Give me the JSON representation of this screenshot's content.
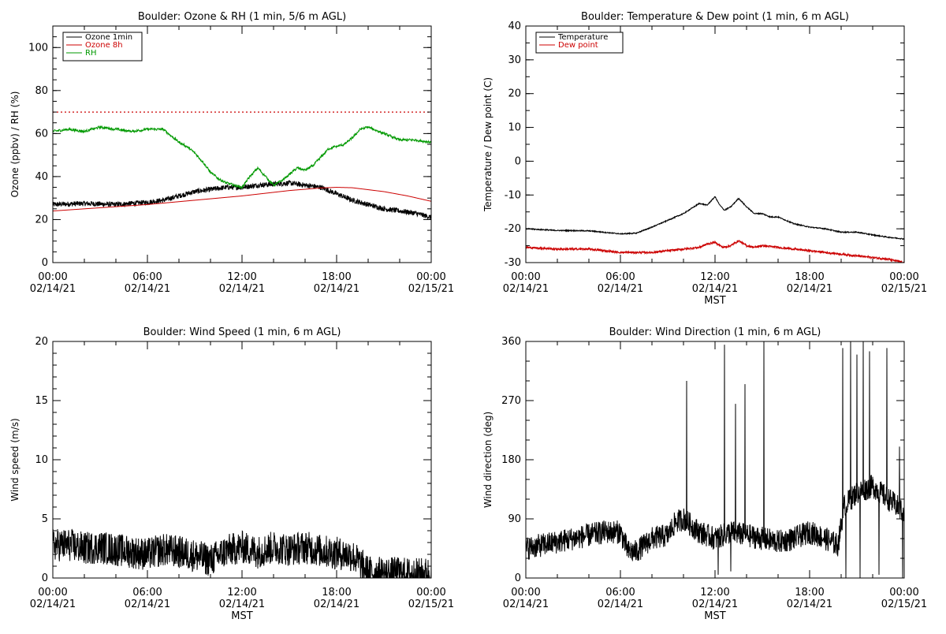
{
  "chart_data": [
    {
      "type": "line",
      "title": "Boulder: Ozone & RH (1 min, 5/6 m AGL)",
      "ylabel": "Ozone (ppbv) / RH (%)",
      "xlabel": "",
      "ylim": [
        0,
        110
      ],
      "yticks": [
        "0",
        "20",
        "40",
        "60",
        "80",
        "100"
      ],
      "ytick_values": [
        0,
        20,
        40,
        60,
        80,
        100
      ],
      "xlim": [
        0,
        24
      ],
      "xticks": [
        {
          "time": "00:00",
          "date": "02/14/21"
        },
        {
          "time": "06:00",
          "date": "02/14/21"
        },
        {
          "time": "12:00",
          "date": "02/14/21"
        },
        {
          "time": "18:00",
          "date": "02/14/21"
        },
        {
          "time": "00:00",
          "date": "02/15/21"
        }
      ],
      "legend": [
        "Ozone 1min",
        "Ozone 8h",
        "RH"
      ],
      "legend_position": "top-left",
      "reference_line": {
        "y": 70,
        "color": "#cc0000",
        "style": "dotted"
      },
      "series": [
        {
          "name": "Ozone 1min",
          "color": "#000000",
          "noise": 1.2,
          "x": [
            0,
            2,
            4,
            6,
            7,
            8,
            9,
            10,
            11,
            12,
            13,
            14,
            15,
            16,
            17,
            18,
            19,
            20,
            21,
            22,
            23,
            24
          ],
          "y": [
            27,
            27.5,
            27,
            28,
            29,
            31,
            33,
            34,
            35,
            35,
            36,
            36.5,
            37,
            36,
            35,
            32,
            29,
            27,
            25,
            24,
            23,
            21
          ]
        },
        {
          "name": "Ozone 8h",
          "color": "#cc0000",
          "noise": 0,
          "x": [
            0,
            3,
            6,
            9,
            12,
            15,
            17,
            18,
            19,
            21,
            22.5,
            24
          ],
          "y": [
            24,
            25.5,
            27,
            29,
            31,
            33.5,
            34.7,
            35,
            34.8,
            33,
            31,
            28.5
          ]
        },
        {
          "name": "RH",
          "color": "#009900",
          "noise": 0.8,
          "x": [
            0,
            1,
            2,
            3,
            4,
            5,
            6,
            7,
            7.5,
            8,
            8.5,
            9,
            9.5,
            10,
            10.5,
            11,
            11.5,
            12,
            12.5,
            13,
            13.5,
            14,
            14.5,
            15,
            15.5,
            16,
            16.5,
            17,
            17.5,
            18,
            18.5,
            19,
            19.5,
            20,
            21,
            22,
            23,
            24
          ],
          "y": [
            61,
            62,
            61,
            63,
            62,
            61,
            62,
            62,
            59,
            56,
            54,
            51,
            47,
            42,
            39,
            37,
            36,
            35,
            40,
            44,
            40,
            36,
            38,
            41,
            44,
            43,
            45,
            49,
            53,
            54,
            55,
            58,
            62,
            63,
            60,
            57,
            57,
            56
          ]
        }
      ]
    },
    {
      "type": "line",
      "title": "Boulder: Temperature & Dew point (1 min, 6 m AGL)",
      "ylabel": "Temperature / Dew point (C)",
      "xlabel": "MST",
      "ylim": [
        -30,
        40
      ],
      "yticks": [
        "-30",
        "-20",
        "-10",
        "0",
        "10",
        "20",
        "30",
        "40"
      ],
      "ytick_values": [
        -30,
        -20,
        -10,
        0,
        10,
        20,
        30,
        40
      ],
      "xlim": [
        0,
        24
      ],
      "xticks": [
        {
          "time": "00:00",
          "date": "02/14/21"
        },
        {
          "time": "06:00",
          "date": "02/14/21"
        },
        {
          "time": "12:00",
          "date": "02/14/21"
        },
        {
          "time": "18:00",
          "date": "02/14/21"
        },
        {
          "time": "00:00",
          "date": "02/15/21"
        }
      ],
      "legend": [
        "Temperature",
        "Dew point"
      ],
      "legend_position": "top-left",
      "series": [
        {
          "name": "Temperature",
          "color": "#000000",
          "noise": 0.15,
          "x": [
            0,
            2,
            4,
            6,
            7,
            8,
            9,
            10,
            10.5,
            11,
            11.5,
            12,
            12.3,
            12.6,
            13,
            13.5,
            14,
            14.5,
            15,
            15.5,
            16,
            17,
            18,
            19,
            20,
            21,
            22,
            23,
            24
          ],
          "y": [
            -20,
            -20.5,
            -20.6,
            -21.5,
            -21.3,
            -19.5,
            -17.5,
            -15.5,
            -14,
            -12.5,
            -13,
            -10.5,
            -13,
            -14.5,
            -13.5,
            -11,
            -13.5,
            -15.5,
            -15.5,
            -16.5,
            -16.5,
            -18.5,
            -19.5,
            -20,
            -21,
            -21,
            -21.8,
            -22.5,
            -23
          ]
        },
        {
          "name": "Dew point",
          "color": "#cc0000",
          "noise": 0.3,
          "x": [
            0,
            2,
            4,
            6,
            7,
            8,
            9,
            10,
            11,
            11.5,
            12,
            12.5,
            13,
            13.5,
            14,
            14.5,
            15,
            16,
            17,
            18,
            19,
            20,
            21,
            22,
            23,
            24
          ],
          "y": [
            -25.5,
            -26,
            -26,
            -27,
            -27,
            -27,
            -26.5,
            -26,
            -25.5,
            -24.5,
            -24,
            -25.5,
            -25,
            -23.5,
            -25,
            -25.5,
            -25,
            -25.5,
            -26,
            -26.5,
            -27,
            -27.5,
            -28,
            -28.5,
            -29,
            -30
          ]
        }
      ]
    },
    {
      "type": "line",
      "title": "Boulder: Wind Speed (1 min, 6 m AGL)",
      "ylabel": "Wind speed (m/s)",
      "xlabel": "MST",
      "ylim": [
        0,
        20
      ],
      "yticks": [
        "0",
        "5",
        "10",
        "15",
        "20"
      ],
      "ytick_values": [
        0,
        5,
        10,
        15,
        20
      ],
      "xlim": [
        0,
        24
      ],
      "xticks": [
        {
          "time": "00:00",
          "date": "02/14/21"
        },
        {
          "time": "06:00",
          "date": "02/14/21"
        },
        {
          "time": "12:00",
          "date": "02/14/21"
        },
        {
          "time": "18:00",
          "date": "02/14/21"
        },
        {
          "time": "00:00",
          "date": "02/15/21"
        }
      ],
      "series": [
        {
          "name": "",
          "color": "#000000",
          "noise": 1.4,
          "x": [
            0,
            1,
            2,
            3,
            4,
            5,
            6,
            7,
            8,
            9,
            10,
            11,
            12,
            13,
            14,
            15,
            16,
            17,
            18,
            19,
            19.5,
            20,
            21,
            22,
            23,
            24
          ],
          "y": [
            2.8,
            2.8,
            2.5,
            2.6,
            2.4,
            2.2,
            2.0,
            2.4,
            2.2,
            1.9,
            1.5,
            2.3,
            2.6,
            2.2,
            2.6,
            2.4,
            2.6,
            2.3,
            2.1,
            1.9,
            1.2,
            0.5,
            0.4,
            0.4,
            0.3,
            0.4
          ]
        }
      ]
    },
    {
      "type": "line",
      "title": "Boulder: Wind Direction (1 min, 6 m AGL)",
      "ylabel": "Wind direction (deg)",
      "xlabel": "MST",
      "ylim": [
        0,
        360
      ],
      "yticks": [
        "0",
        "90",
        "180",
        "270",
        "360"
      ],
      "ytick_values": [
        0,
        90,
        180,
        270,
        360
      ],
      "xlim": [
        0,
        24
      ],
      "xticks": [
        {
          "time": "00:00",
          "date": "02/14/21"
        },
        {
          "time": "06:00",
          "date": "02/14/21"
        },
        {
          "time": "12:00",
          "date": "02/14/21"
        },
        {
          "time": "18:00",
          "date": "02/14/21"
        },
        {
          "time": "00:00",
          "date": "02/15/21"
        }
      ],
      "series": [
        {
          "name": "",
          "color": "#000000",
          "noise": 18,
          "x": [
            0,
            1,
            2,
            3,
            4,
            5,
            6,
            6.5,
            7,
            8,
            9,
            9.5,
            10,
            11,
            12,
            13,
            14,
            15,
            16,
            17,
            18,
            19,
            19.8,
            20.2,
            21,
            22,
            23,
            24
          ],
          "y": [
            45,
            50,
            55,
            60,
            65,
            70,
            70,
            40,
            40,
            60,
            65,
            85,
            90,
            70,
            60,
            70,
            65,
            60,
            55,
            60,
            70,
            60,
            50,
            110,
            130,
            140,
            120,
            100
          ],
          "spikes": [
            {
              "x": 10.2,
              "y": 300
            },
            {
              "x": 12.6,
              "y": 355
            },
            {
              "x": 13.3,
              "y": 265
            },
            {
              "x": 13.9,
              "y": 295
            },
            {
              "x": 15.1,
              "y": 360
            },
            {
              "x": 20.1,
              "y": 350
            },
            {
              "x": 20.6,
              "y": 360
            },
            {
              "x": 21.0,
              "y": 340
            },
            {
              "x": 21.4,
              "y": 360
            },
            {
              "x": 21.8,
              "y": 345
            },
            {
              "x": 22.9,
              "y": 350
            },
            {
              "x": 23.7,
              "y": 200
            }
          ],
          "dips": [
            {
              "x": 12.2,
              "y": 5
            },
            {
              "x": 13.0,
              "y": 10
            },
            {
              "x": 20.3,
              "y": 0
            },
            {
              "x": 21.2,
              "y": 0
            },
            {
              "x": 22.4,
              "y": 5
            },
            {
              "x": 23.9,
              "y": 0
            }
          ]
        }
      ]
    }
  ]
}
